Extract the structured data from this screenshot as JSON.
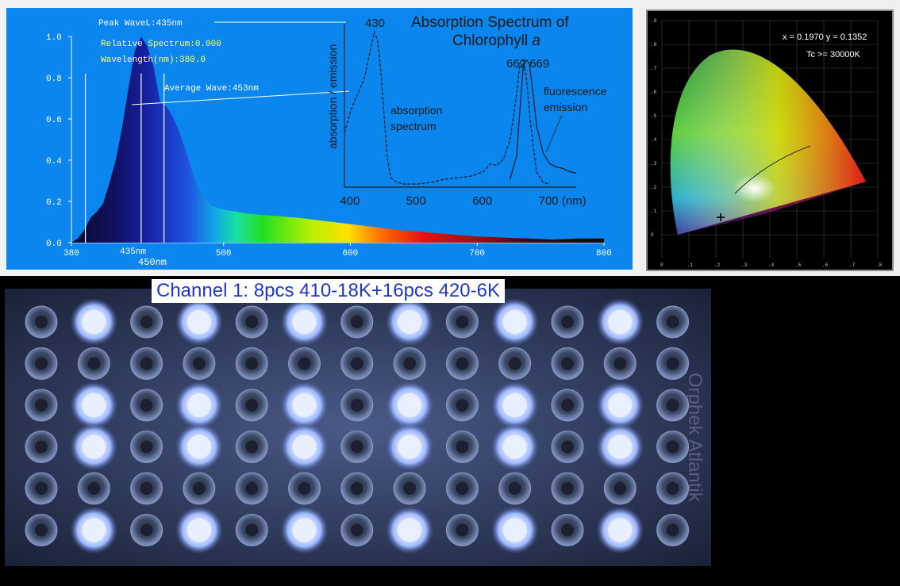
{
  "chart_data": [
    {
      "type": "area",
      "x": [
        380,
        385,
        390,
        395,
        400,
        405,
        410,
        415,
        420,
        425,
        430,
        435,
        440,
        445,
        450,
        455,
        460,
        465,
        470,
        475,
        480,
        490,
        500,
        520,
        540,
        560,
        580,
        600,
        620,
        640,
        660,
        680,
        700,
        720,
        740,
        760,
        780,
        800
      ],
      "y": [
        0.0,
        0.02,
        0.06,
        0.12,
        0.15,
        0.19,
        0.29,
        0.4,
        0.56,
        0.75,
        0.93,
        1.0,
        0.95,
        0.85,
        0.68,
        0.66,
        0.61,
        0.54,
        0.45,
        0.35,
        0.26,
        0.18,
        0.16,
        0.14,
        0.13,
        0.12,
        0.105,
        0.09,
        0.075,
        0.06,
        0.05,
        0.04,
        0.03,
        0.025,
        0.02,
        0.015,
        0.02,
        0.02
      ],
      "xlim": [
        380,
        800
      ],
      "ylim": [
        0,
        1.0
      ],
      "xticks": [
        "380",
        "500",
        "600",
        "700",
        "800"
      ],
      "yticks": [
        "0.0",
        "0.2",
        "0.4",
        "0.6",
        "0.8",
        "1.0"
      ],
      "annotations": {
        "peak": "Peak WaveL:435nm",
        "relative": "Relative Spectrum:0.000",
        "wavelength": "Wavelength(nm):380.0",
        "average": "Average Wave:453nm",
        "marker_435": "435nm",
        "marker_450": "450nm"
      },
      "markers_nm": [
        391,
        435,
        453
      ]
    },
    {
      "type": "line",
      "title_line1": "Absorption Spectrum of",
      "title_line2": "Chlorophyll ",
      "title_italic": "a",
      "ylabel": "absorption / emission",
      "xticks": [
        "400",
        "500",
        "600",
        "700 (nm)"
      ],
      "xlim": [
        390,
        740
      ],
      "series": [
        {
          "name": "absorption spectrum",
          "x": [
            390,
            400,
            410,
            420,
            430,
            435,
            440,
            445,
            450,
            455,
            460,
            470,
            480,
            500,
            520,
            540,
            560,
            580,
            600,
            610,
            620,
            630,
            640,
            650,
            655,
            660,
            665,
            670,
            680,
            690,
            700
          ],
          "y": [
            0.35,
            0.5,
            0.6,
            0.7,
            0.9,
            1.0,
            0.95,
            0.75,
            0.45,
            0.18,
            0.06,
            0.03,
            0.02,
            0.02,
            0.03,
            0.05,
            0.06,
            0.07,
            0.1,
            0.15,
            0.14,
            0.18,
            0.3,
            0.6,
            0.8,
            0.82,
            0.7,
            0.45,
            0.1,
            0.03,
            0.02
          ]
        },
        {
          "name": "fluorescence emission",
          "x": [
            640,
            650,
            655,
            660,
            665,
            669,
            675,
            680,
            690,
            700,
            710,
            720,
            730,
            740
          ],
          "y": [
            0.05,
            0.2,
            0.5,
            0.78,
            0.82,
            0.8,
            0.6,
            0.4,
            0.22,
            0.15,
            0.13,
            0.12,
            0.1,
            0.09
          ]
        }
      ],
      "peak_labels": [
        "430",
        "662 669"
      ],
      "series_labels": {
        "absorption_1": "absorption",
        "absorption_2": "spectrum",
        "fluorescence_1": "fluorescence",
        "fluorescence_2": "emission"
      }
    }
  ],
  "cie": {
    "coords": "x = 0.1970 y = 0.1352",
    "cct": "Tc >= 30000K",
    "xticks": [
      "0",
      ".1",
      ".2",
      ".3",
      ".4",
      ".5",
      ".6",
      ".7",
      ".8"
    ],
    "yticks": [
      ".9",
      ".8",
      ".7",
      ".6",
      ".5",
      ".4",
      ".3",
      ".2",
      ".1",
      "0"
    ]
  },
  "led_panel": {
    "channel_label": "Channel 1: 8pcs 410-18K+16pcs 420-6K",
    "brand": "Orphek Atlantik",
    "rows": 6,
    "cols": 13,
    "lit_rows": [
      0,
      2,
      3,
      5
    ],
    "lit_cols": [
      1,
      3,
      5,
      7,
      9,
      11
    ],
    "colors": {
      "lit": "#e8f0ff",
      "glow": "#9fb8ff",
      "panel": "#2c3650"
    }
  }
}
